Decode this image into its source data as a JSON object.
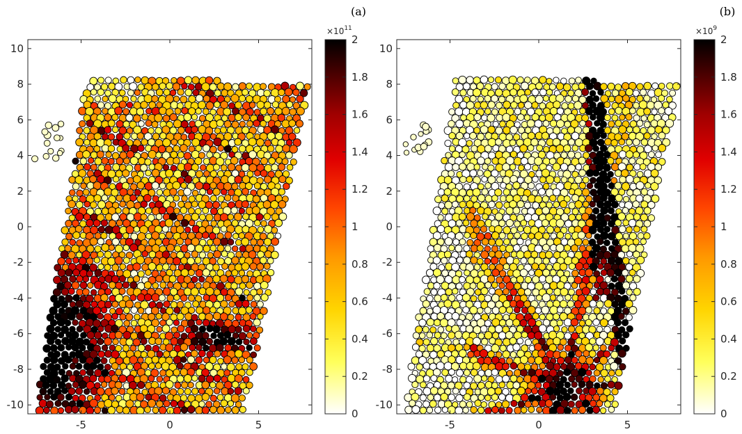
{
  "chart_data": [
    {
      "type": "scatter",
      "panel_label": "(a)",
      "description_of_marks": "granular particles colored by magnitude",
      "xlim": [
        -8,
        8
      ],
      "ylim": [
        -10.5,
        10.5
      ],
      "x_ticks": [
        "-5",
        "0",
        "5"
      ],
      "x_tick_values": [
        -5,
        0,
        5
      ],
      "y_ticks": [
        "-10",
        "-8",
        "-6",
        "-4",
        "-2",
        "0",
        "2",
        "4",
        "6",
        "8",
        "10"
      ],
      "y_tick_values": [
        -10,
        -8,
        -6,
        -4,
        -2,
        0,
        2,
        4,
        6,
        8,
        10
      ],
      "colorbar": {
        "min": 0,
        "max": 2,
        "exponent_base": "×10",
        "exponent": "11",
        "ticks": [
          "0",
          "0.2",
          "0.4",
          "0.6",
          "0.8",
          "1",
          "1.2",
          "1.4",
          "1.6",
          "1.8",
          "2"
        ],
        "tick_values": [
          0,
          0.2,
          0.4,
          0.6,
          0.8,
          1,
          1.2,
          1.4,
          1.6,
          1.8,
          2
        ],
        "colormap": [
          "#ffffff",
          "#ffff5a",
          "#ffd400",
          "#ff9800",
          "#ff4500",
          "#e00000",
          "#a00000",
          "#500000",
          "#000000"
        ]
      },
      "grid": false,
      "dense_region": "lower-left"
    },
    {
      "type": "scatter",
      "panel_label": "(b)",
      "description_of_marks": "granular particles colored by magnitude",
      "xlim": [
        -8,
        8
      ],
      "ylim": [
        -10.5,
        10.5
      ],
      "x_ticks": [
        "-5",
        "0",
        "5"
      ],
      "x_tick_values": [
        -5,
        0,
        5
      ],
      "y_ticks": [
        "-10",
        "-8",
        "-6",
        "-4",
        "-2",
        "0",
        "2",
        "4",
        "6",
        "8",
        "10"
      ],
      "y_tick_values": [
        -10,
        -8,
        -6,
        -4,
        -2,
        0,
        2,
        4,
        6,
        8,
        10
      ],
      "colorbar": {
        "min": 0,
        "max": 2,
        "exponent_base": "×10",
        "exponent": "9",
        "ticks": [
          "0",
          "0.2",
          "0.4",
          "0.6",
          "0.8",
          "1",
          "1.2",
          "1.4",
          "1.6",
          "1.8",
          "2"
        ],
        "tick_values": [
          0,
          0.2,
          0.4,
          0.6,
          0.8,
          1,
          1.2,
          1.4,
          1.6,
          1.8,
          2
        ],
        "colormap": [
          "#ffffff",
          "#ffff5a",
          "#ffd400",
          "#ff9800",
          "#ff4500",
          "#e00000",
          "#a00000",
          "#500000",
          "#000000"
        ]
      },
      "grid": false,
      "dense_region": "bottom-center chains"
    }
  ]
}
